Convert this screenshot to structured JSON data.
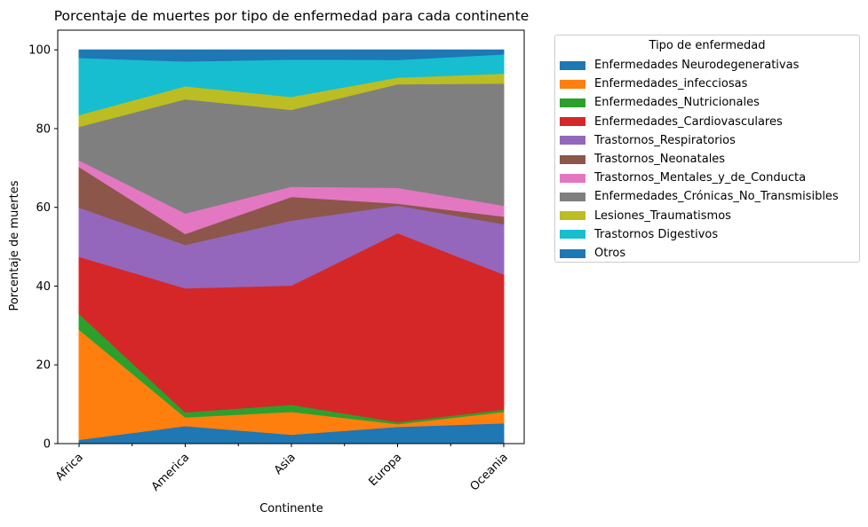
{
  "chart_data": {
    "type": "area",
    "stacked": true,
    "title": "Porcentaje de muertes por tipo de enfermedad para cada continente",
    "xlabel": "Continente",
    "ylabel": "Porcentaje de muertes",
    "categories": [
      "Africa",
      "America",
      "Asia",
      "Europa",
      "Oceania"
    ],
    "ylim": [
      0,
      105
    ],
    "yticks": [
      0,
      20,
      40,
      60,
      80,
      100
    ],
    "grid": false,
    "legend_title": "Tipo de enfermedad",
    "legend_position": "outside-right",
    "series": [
      {
        "name": "Enfermedades Neurodegenerativas",
        "color": "#1f77b4",
        "values": [
          1.0,
          4.5,
          2.3,
          4.3,
          5.2
        ]
      },
      {
        "name": "Enfermedades_infecciosas",
        "color": "#ff7f0e",
        "values": [
          28.0,
          2.2,
          5.8,
          0.7,
          2.9
        ]
      },
      {
        "name": "Enfermedades_Nutricionales",
        "color": "#2ca02c",
        "values": [
          4.0,
          1.3,
          1.8,
          0.5,
          0.6
        ]
      },
      {
        "name": "Enfermedades_Cardiovasculares",
        "color": "#d62728",
        "values": [
          14.5,
          31.5,
          30.3,
          48.0,
          34.3
        ]
      },
      {
        "name": "Trastornos_Respiratorios",
        "color": "#9467bd",
        "values": [
          12.5,
          11.0,
          16.5,
          7.0,
          12.8
        ]
      },
      {
        "name": "Trastornos_Neonatales",
        "color": "#8c564b",
        "values": [
          10.3,
          2.8,
          6.0,
          0.5,
          1.9
        ]
      },
      {
        "name": "Trastornos_Mentales_y_de_Conducta",
        "color": "#e377c2",
        "values": [
          1.7,
          5.2,
          2.6,
          4.0,
          2.8
        ]
      },
      {
        "name": "Enfermedades_Crónicas_No_Transmisibles",
        "color": "#7f7f7f",
        "values": [
          8.5,
          29.0,
          19.5,
          26.3,
          31.0
        ]
      },
      {
        "name": "Lesiones_Traumatismos",
        "color": "#bcbd22",
        "values": [
          3.0,
          3.3,
          3.3,
          1.7,
          2.5
        ]
      },
      {
        "name": "Trastornos Digestivos",
        "color": "#17becf",
        "values": [
          14.5,
          6.3,
          9.5,
          4.5,
          4.9
        ]
      },
      {
        "name": "Otros",
        "color": "#1f77b4",
        "values": [
          2.0,
          2.9,
          2.4,
          2.5,
          1.1
        ]
      }
    ]
  }
}
